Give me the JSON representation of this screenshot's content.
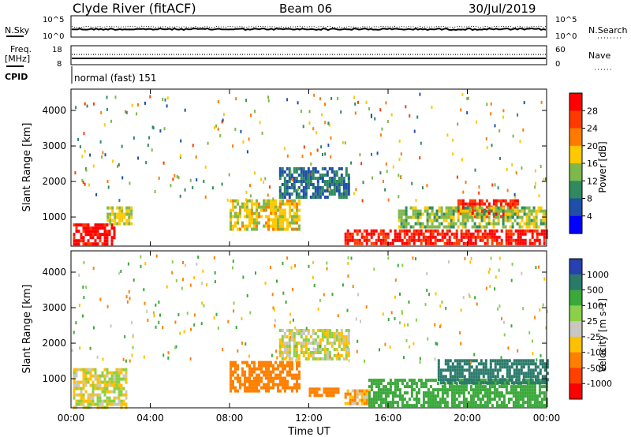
{
  "header": {
    "station": "Clyde River (fitACF)",
    "beam": "Beam 06",
    "date": "30/Jul/2019"
  },
  "noise_panel": {
    "left_label": "N.Sky",
    "right_label": "N.Search",
    "left_ticks": [
      "10^5",
      "10^0"
    ],
    "right_ticks": [
      "10^5",
      "10^0"
    ]
  },
  "freq_panel": {
    "left_label_1": "Freq.",
    "left_label_2": "[MHz]",
    "right_label": "Nave",
    "left_ticks": [
      "18",
      "8"
    ],
    "right_ticks": [
      "60",
      "0"
    ]
  },
  "cpid_panel": {
    "label": "CPID",
    "text": "normal (fast) 151"
  },
  "chart_data": [
    {
      "type": "heatmap",
      "title": "",
      "ylabel": "Slant Range [km]",
      "xlabel": "",
      "ylim": [
        180,
        4600
      ],
      "xlim": [
        0,
        24
      ],
      "yticks": [
        "1000",
        "2000",
        "3000",
        "4000"
      ],
      "colorbar": {
        "label": "Power [dB]",
        "ticks": [
          "28",
          "24",
          "20",
          "16",
          "12",
          "8",
          "4"
        ],
        "colors": [
          "#ff0000",
          "#ff3a00",
          "#ff7a00",
          "#ffc800",
          "#7fb84a",
          "#2f8a5e",
          "#1f4fa8",
          "#0000ff"
        ]
      },
      "echo_regions": [
        {
          "t0": 0.1,
          "t1": 2.2,
          "r0": 220,
          "r1": 820,
          "power": 28
        },
        {
          "t0": 1.8,
          "t1": 3.0,
          "r0": 800,
          "r1": 1300,
          "power": 14
        },
        {
          "t0": 13.8,
          "t1": 24.0,
          "r0": 220,
          "r1": 650,
          "power": 27
        },
        {
          "t0": 19.5,
          "t1": 22.5,
          "r0": 1050,
          "r1": 1500,
          "power": 26
        },
        {
          "t0": 16.5,
          "t1": 24.0,
          "r0": 700,
          "r1": 1300,
          "power": 12
        },
        {
          "t0": 8.0,
          "t1": 11.5,
          "r0": 700,
          "r1": 1500,
          "power": 15
        },
        {
          "t0": 10.5,
          "t1": 14.0,
          "r0": 1600,
          "r1": 2400,
          "power": 6
        }
      ]
    },
    {
      "type": "heatmap",
      "title": "",
      "ylabel": "Slant Range [km]",
      "xlabel": "Time UT",
      "ylim": [
        180,
        4600
      ],
      "xlim": [
        0,
        24
      ],
      "yticks": [
        "1000",
        "2000",
        "3000",
        "4000"
      ],
      "xticks": [
        "00:00",
        "04:00",
        "08:00",
        "12:00",
        "16:00",
        "20:00",
        "00:00"
      ],
      "colorbar": {
        "label": "Velocity [m s-1]",
        "ticks": [
          "1000",
          "500",
          "100",
          "25",
          "-25",
          "-100",
          "-500",
          "-1000"
        ],
        "colors": [
          "#2840b0",
          "#2a7a6a",
          "#3aa83a",
          "#8ad048",
          "#c8c8c0",
          "#ffc000",
          "#ff8000",
          "#ff4000",
          "#ff0000"
        ]
      },
      "echo_regions": [
        {
          "t0": 0.1,
          "t1": 2.8,
          "r0": 220,
          "r1": 1300,
          "velocity": 0
        },
        {
          "t0": 8.0,
          "t1": 11.5,
          "r0": 700,
          "r1": 1500,
          "velocity": -300
        },
        {
          "t0": 12.0,
          "t1": 13.5,
          "r0": 550,
          "r1": 750,
          "velocity": -300
        },
        {
          "t0": 13.8,
          "t1": 15.0,
          "r0": 300,
          "r1": 700,
          "velocity": -100
        },
        {
          "t0": 15.0,
          "t1": 24.0,
          "r0": 220,
          "r1": 1000,
          "velocity": 200
        },
        {
          "t0": 18.5,
          "t1": 24.0,
          "r0": 900,
          "r1": 1550,
          "velocity": 900
        },
        {
          "t0": 10.5,
          "t1": 14.0,
          "r0": 1600,
          "r1": 2400,
          "velocity": 0
        }
      ]
    }
  ]
}
